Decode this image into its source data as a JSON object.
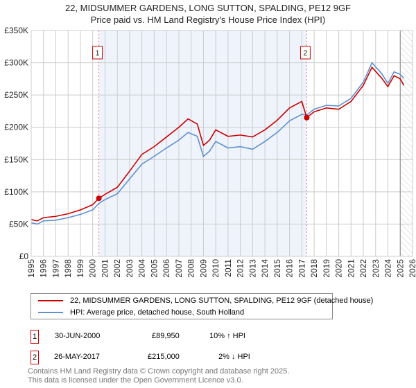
{
  "chart_data": {
    "type": "line",
    "title": "22, MIDSUMMER GARDENS, LONG SUTTON, SPALDING, PE12 9GF",
    "subtitle": "Price paid vs. HM Land Registry's House Price Index (HPI)",
    "xlim": [
      1995,
      2026
    ],
    "ylim": [
      0,
      350000
    ],
    "y_ticks": [
      {
        "v": 0,
        "l": "£0"
      },
      {
        "v": 50000,
        "l": "£50K"
      },
      {
        "v": 100000,
        "l": "£100K"
      },
      {
        "v": 150000,
        "l": "£150K"
      },
      {
        "v": 200000,
        "l": "£200K"
      },
      {
        "v": 250000,
        "l": "£250K"
      },
      {
        "v": 300000,
        "l": "£300K"
      },
      {
        "v": 350000,
        "l": "£350K"
      }
    ],
    "x_ticks": [
      "1995",
      "1996",
      "1997",
      "1998",
      "1999",
      "2000",
      "2001",
      "2002",
      "2003",
      "2004",
      "2005",
      "2006",
      "2007",
      "2008",
      "2009",
      "2010",
      "2011",
      "2012",
      "2013",
      "2014",
      "2015",
      "2016",
      "2017",
      "2018",
      "2019",
      "2020",
      "2021",
      "2022",
      "2023",
      "2024",
      "2025",
      "2026"
    ],
    "grid": true,
    "shaded_range": [
      2000.5,
      2017.4
    ],
    "hatched_from": 2025.0,
    "series": [
      {
        "name": "22, MIDSUMMER GARDENS, LONG SUTTON, SPALDING, PE12 9GF (detached house)",
        "color": "#cc0000",
        "x": [
          1995,
          1995.5,
          1996,
          1997,
          1998,
          1999,
          2000,
          2000.5,
          2001,
          2002,
          2003,
          2004,
          2005,
          2006,
          2007,
          2007.75,
          2008.5,
          2009,
          2009.5,
          2010,
          2011,
          2012,
          2013,
          2014,
          2015,
          2016,
          2017,
          2017.4,
          2018,
          2019,
          2020,
          2021,
          2022,
          2022.7,
          2023.5,
          2024,
          2024.5,
          2025,
          2025.3
        ],
        "y": [
          57000,
          55000,
          60000,
          62000,
          66000,
          72000,
          80000,
          89950,
          96000,
          107000,
          132000,
          158000,
          170000,
          185000,
          200000,
          213000,
          205000,
          172000,
          180000,
          196000,
          186000,
          188000,
          185000,
          196000,
          211000,
          230000,
          240000,
          215000,
          224000,
          230000,
          228000,
          240000,
          265000,
          293000,
          276000,
          263000,
          280000,
          275000,
          265000
        ]
      },
      {
        "name": "HPI: Average price, detached house, South Holland",
        "color": "#6090d0",
        "x": [
          1995,
          1995.5,
          1996,
          1997,
          1998,
          1999,
          2000,
          2000.5,
          2001,
          2002,
          2003,
          2004,
          2005,
          2006,
          2007,
          2007.75,
          2008.5,
          2009,
          2009.5,
          2010,
          2011,
          2012,
          2013,
          2014,
          2015,
          2016,
          2017,
          2017.4,
          2018,
          2019,
          2020,
          2021,
          2022,
          2022.7,
          2023.5,
          2024,
          2024.5,
          2025,
          2025.3
        ],
        "y": [
          52000,
          50000,
          55000,
          56000,
          60000,
          65000,
          72000,
          82000,
          88000,
          97000,
          120000,
          143000,
          155000,
          168000,
          180000,
          192000,
          186000,
          155000,
          163000,
          178000,
          168000,
          170000,
          166000,
          178000,
          192000,
          210000,
          220000,
          219000,
          228000,
          234000,
          233000,
          245000,
          270000,
          300000,
          283000,
          268000,
          286000,
          282000,
          276000
        ]
      }
    ],
    "annotations": [
      {
        "label": "1",
        "x": 2000.5,
        "y": 89950
      },
      {
        "label": "2",
        "x": 2017.4,
        "y": 215000
      }
    ]
  },
  "table": [
    {
      "n": "1",
      "date": "30-JUN-2000",
      "price": "£89,950",
      "hpi": "10% ↑ HPI"
    },
    {
      "n": "2",
      "date": "26-MAY-2017",
      "price": "£215,000",
      "hpi": "2% ↓ HPI"
    }
  ],
  "footer": [
    "Contains HM Land Registry data © Crown copyright and database right 2025.",
    "This data is licensed under the Open Government Licence v3.0."
  ]
}
